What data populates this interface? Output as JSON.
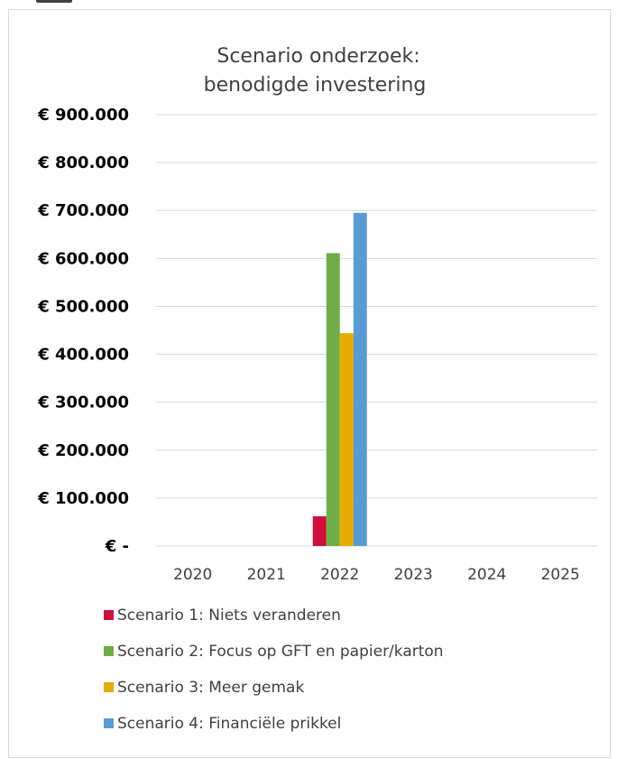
{
  "chart_data": {
    "type": "bar",
    "title": [
      "Scenario onderzoek:",
      "benodigde investering"
    ],
    "categories": [
      "2020",
      "2021",
      "2022",
      "2023",
      "2024",
      "2025"
    ],
    "ylim": [
      0,
      900000
    ],
    "ytick_values": [
      0,
      100000,
      200000,
      300000,
      400000,
      500000,
      600000,
      700000,
      800000,
      900000
    ],
    "ytick_labels": [
      "€ -",
      "€ 100.000",
      "€ 200.000",
      "€ 300.000",
      "€ 400.000",
      "€ 500.000",
      "€ 600.000",
      "€ 700.000",
      "€ 800.000",
      "€ 900.000"
    ],
    "grid": true,
    "legend_position": "bottom",
    "series": [
      {
        "name": "Scenario 1: Niets veranderen",
        "color": "#d0103a",
        "values": [
          0,
          0,
          62000,
          0,
          0,
          0
        ]
      },
      {
        "name": "Scenario 2: Focus op GFT en papier/karton",
        "color": "#70ad47",
        "values": [
          0,
          0,
          611000,
          0,
          0,
          0
        ]
      },
      {
        "name": "Scenario 3: Meer gemak",
        "color": "#e6ac00",
        "values": [
          0,
          0,
          444000,
          0,
          0,
          0
        ]
      },
      {
        "name": "Scenario 4: Financiële prikkel",
        "color": "#5b9bd5",
        "values": [
          0,
          0,
          695000,
          0,
          0,
          0
        ]
      }
    ]
  }
}
